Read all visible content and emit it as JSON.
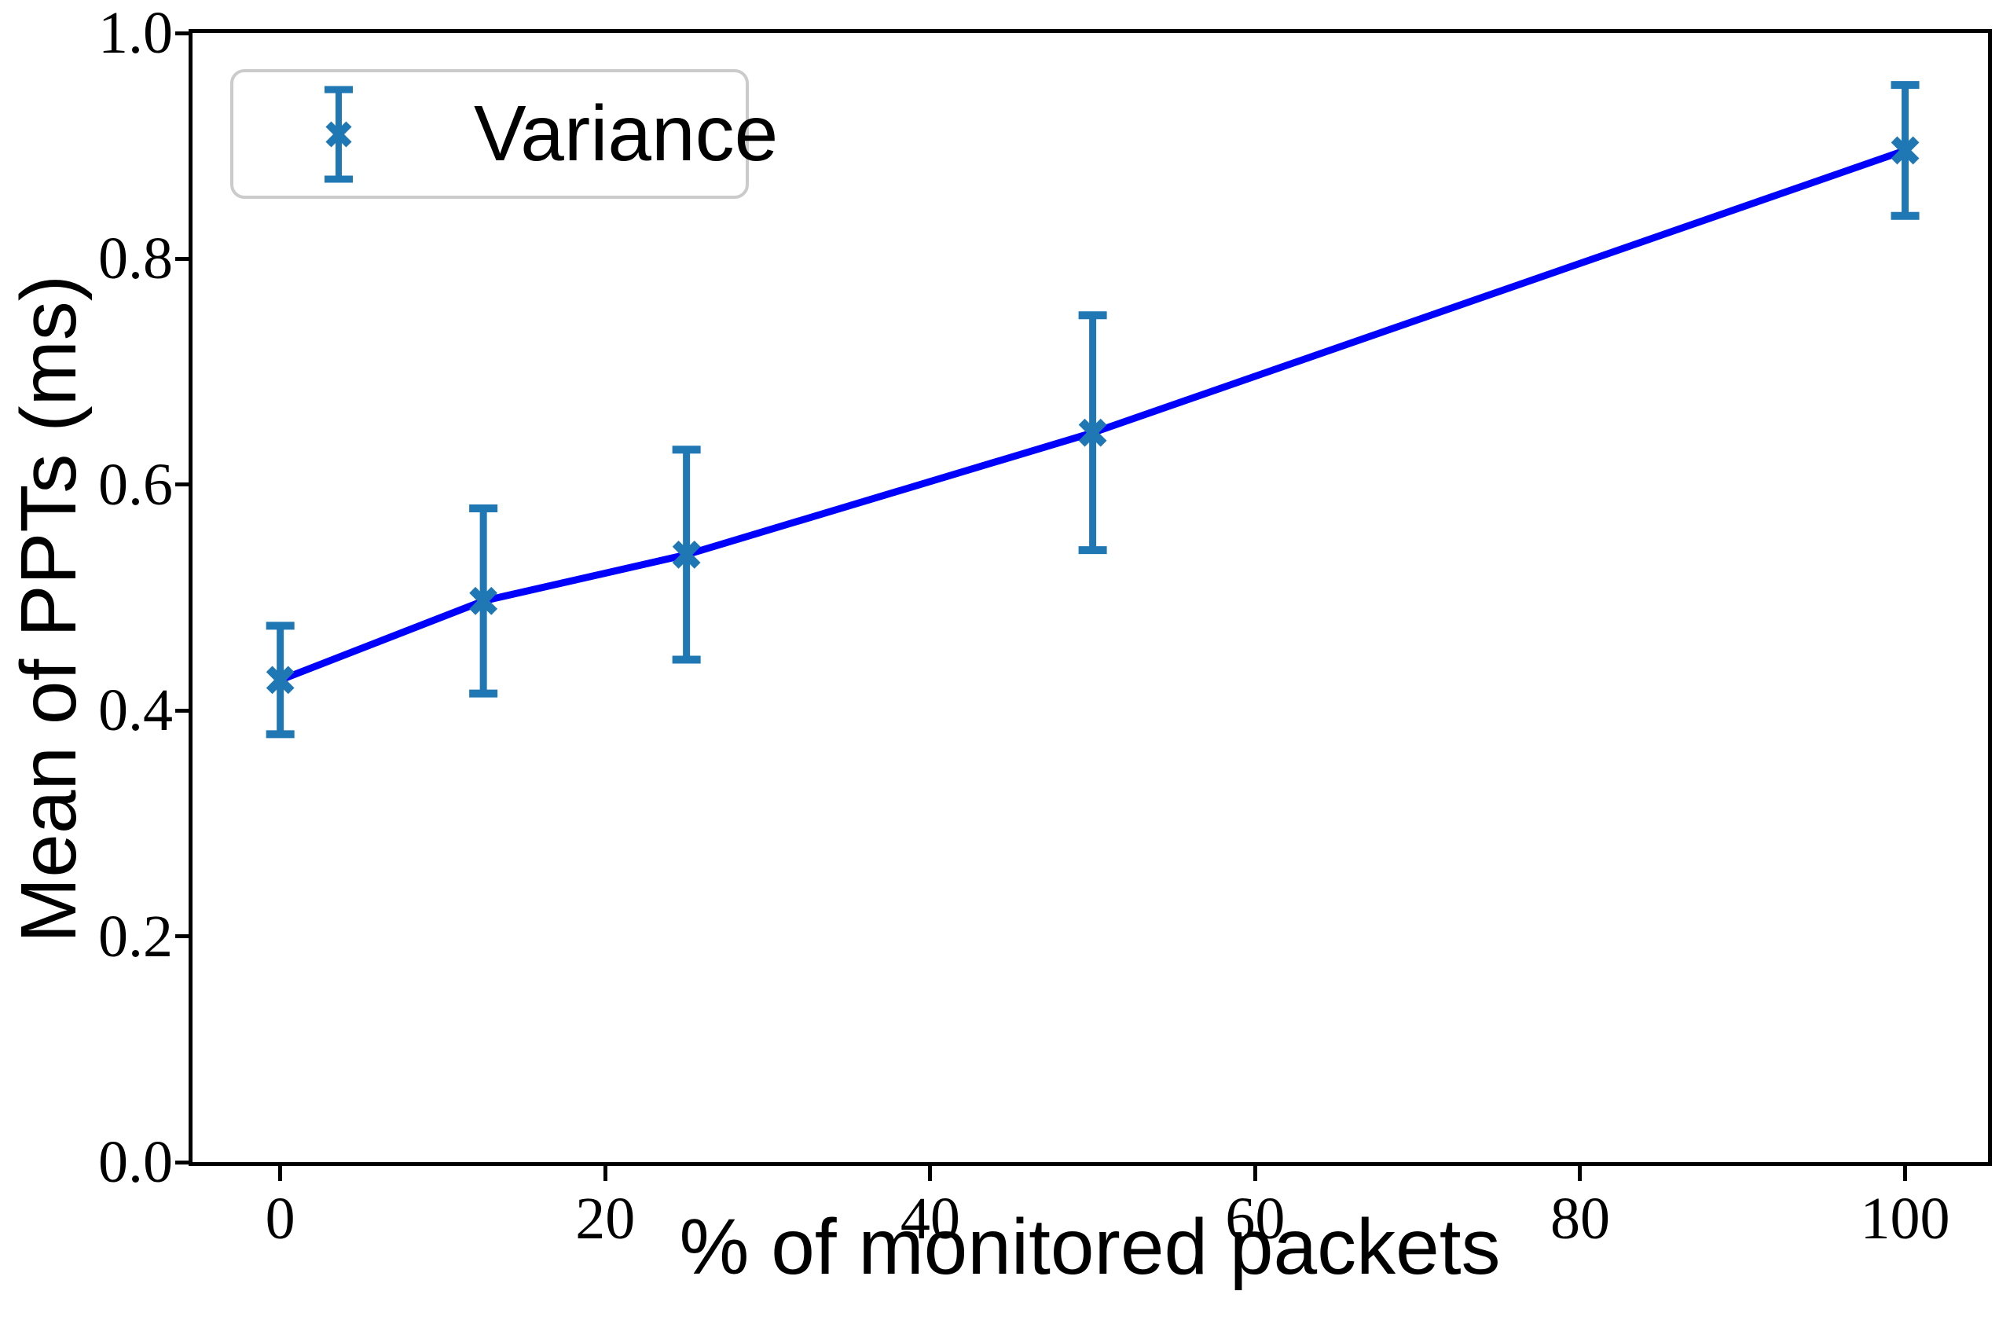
{
  "figure": {
    "background": "#ffffff",
    "legend": {
      "label": "Variance"
    },
    "axes": {
      "xlabel": "% of monitored packets",
      "ylabel": "Mean of PPTs (ms)"
    }
  },
  "chart_data": {
    "type": "line",
    "title": "",
    "xlabel": "% of monitored packets",
    "ylabel": "Mean of PPTs (ms)",
    "series": [
      {
        "name": "Variance",
        "marker": "x",
        "x": [
          0,
          12.5,
          25,
          50,
          100
        ],
        "y": [
          0.427,
          0.497,
          0.538,
          0.646,
          0.896
        ],
        "yerr": [
          0.048,
          0.082,
          0.093,
          0.104,
          0.058
        ]
      }
    ],
    "xlim": [
      -5.4,
      105.1
    ],
    "ylim": [
      0.0,
      1.0
    ],
    "xticks": [
      0,
      20,
      40,
      60,
      80,
      100
    ],
    "xtick_labels": [
      "0",
      "20",
      "40",
      "60",
      "80",
      "100"
    ],
    "yticks": [
      0.0,
      0.2,
      0.4,
      0.6,
      0.8,
      1.0
    ],
    "ytick_labels": [
      "0.0",
      "0.2",
      "0.4",
      "0.6",
      "0.8",
      "1.0"
    ],
    "grid": false,
    "legend_position": "upper left",
    "line_color": "#0000ff",
    "errorbar_color": "#1f77b4",
    "spine_color": "#000000"
  }
}
